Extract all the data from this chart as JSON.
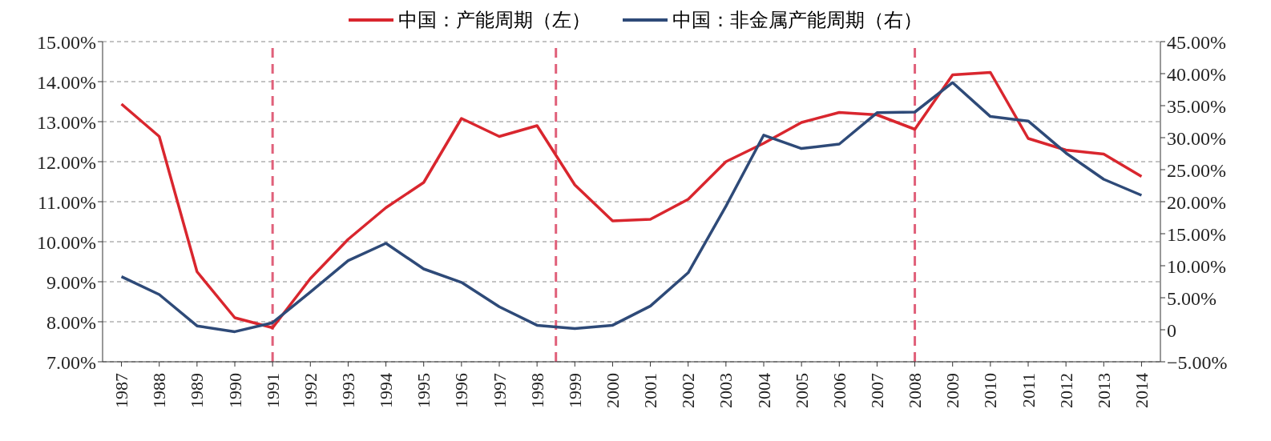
{
  "chart_data": {
    "type": "line",
    "x": [
      1987,
      1988,
      1989,
      1990,
      1991,
      1992,
      1993,
      1994,
      1995,
      1996,
      1997,
      1998,
      1999,
      2000,
      2001,
      2002,
      2003,
      2004,
      2005,
      2006,
      2007,
      2008,
      2009,
      2010,
      2011,
      2012,
      2013,
      2014
    ],
    "xlim": [
      1986.5,
      2014.5
    ],
    "xticks": [
      1987,
      1988,
      1989,
      1990,
      1991,
      1992,
      1993,
      1994,
      1995,
      1996,
      1997,
      1998,
      1999,
      2000,
      2001,
      2002,
      2003,
      2004,
      2005,
      2006,
      2007,
      2008,
      2009,
      2010,
      2011,
      2012,
      2013,
      2014
    ],
    "ylim": [
      7,
      15
    ],
    "yticks": [
      {
        "value": 7,
        "label": "7.00%"
      },
      {
        "value": 8,
        "label": "8.00%"
      },
      {
        "value": 9,
        "label": "9.00%"
      },
      {
        "value": 10,
        "label": "10.00%"
      },
      {
        "value": 11,
        "label": "11.00%"
      },
      {
        "value": 12,
        "label": "12.00%"
      },
      {
        "value": 13,
        "label": "13.00%"
      },
      {
        "value": 14,
        "label": "14.00%"
      },
      {
        "value": 15,
        "label": "15.00%"
      }
    ],
    "y2lim": [
      -5,
      45
    ],
    "y2ticks": [
      {
        "value": -5,
        "label": "−5.00%"
      },
      {
        "value": 0,
        "label": "0"
      },
      {
        "value": 5,
        "label": "5.00%"
      },
      {
        "value": 10,
        "label": "10.00%"
      },
      {
        "value": 15,
        "label": "15.00%"
      },
      {
        "value": 20,
        "label": "20.00%"
      },
      {
        "value": 25,
        "label": "25.00%"
      },
      {
        "value": 30,
        "label": "30.00%"
      },
      {
        "value": 35,
        "label": "35.00%"
      },
      {
        "value": 40,
        "label": "40.00%"
      },
      {
        "value": 45,
        "label": "45.00%"
      }
    ],
    "series": [
      {
        "name": "中国：产能周期（左）",
        "color": "#d9262e",
        "values": [
          13.44,
          12.63,
          9.25,
          8.1,
          7.85,
          9.08,
          10.06,
          10.85,
          11.48,
          13.08,
          12.63,
          12.9,
          11.42,
          10.52,
          10.56,
          11.06,
          12.0,
          12.46,
          12.98,
          13.23,
          13.17,
          12.81,
          14.17,
          14.23,
          12.58,
          12.29,
          12.19,
          11.63
        ]
      },
      {
        "name": "中国：非金属产能周期（右）",
        "color": "#2e4a78",
        "axis": "y2",
        "values": [
          8.3,
          5.5,
          0.6,
          -0.3,
          1.1,
          5.9,
          10.8,
          13.5,
          9.5,
          7.4,
          3.6,
          0.7,
          0.2,
          0.7,
          3.7,
          8.9,
          19.3,
          30.4,
          28.3,
          29.0,
          33.9,
          34.0,
          38.6,
          33.3,
          32.6,
          27.6,
          23.5,
          21.0
        ]
      }
    ],
    "ref_lines": [
      {
        "axis": "x",
        "value": 1991,
        "color": "#e0607a",
        "line_style": "dashed"
      },
      {
        "axis": "x",
        "value": 1998.5,
        "color": "#e0607a",
        "line_style": "dashed"
      },
      {
        "axis": "x",
        "value": 2008,
        "color": "#e0607a",
        "line_style": "dashed"
      }
    ],
    "grid": "y",
    "legend": "top",
    "line_style": "solid",
    "marker": "none"
  }
}
